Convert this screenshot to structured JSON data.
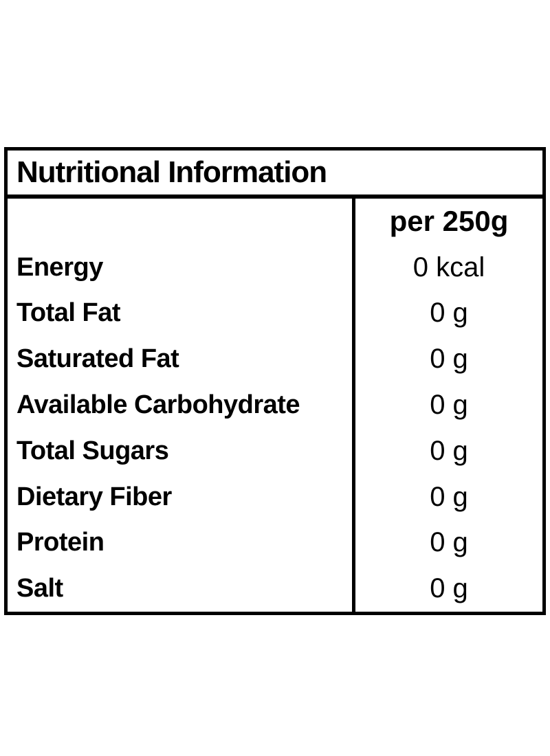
{
  "table": {
    "title": "Nutritional Information",
    "column_header": "per 250g",
    "rows": [
      {
        "label": "Energy",
        "value": "0 kcal"
      },
      {
        "label": "Total Fat",
        "value": "0 g"
      },
      {
        "label": "Saturated Fat",
        "value": "0 g"
      },
      {
        "label": "Available Carbohydrate",
        "value": "0 g"
      },
      {
        "label": "Total Sugars",
        "value": "0 g"
      },
      {
        "label": "Dietary Fiber",
        "value": "0 g"
      },
      {
        "label": "Protein",
        "value": "0 g"
      },
      {
        "label": "Salt",
        "value": "0 g"
      }
    ],
    "colors": {
      "border": "#000000",
      "text": "#000000",
      "background": "#ffffff"
    }
  }
}
